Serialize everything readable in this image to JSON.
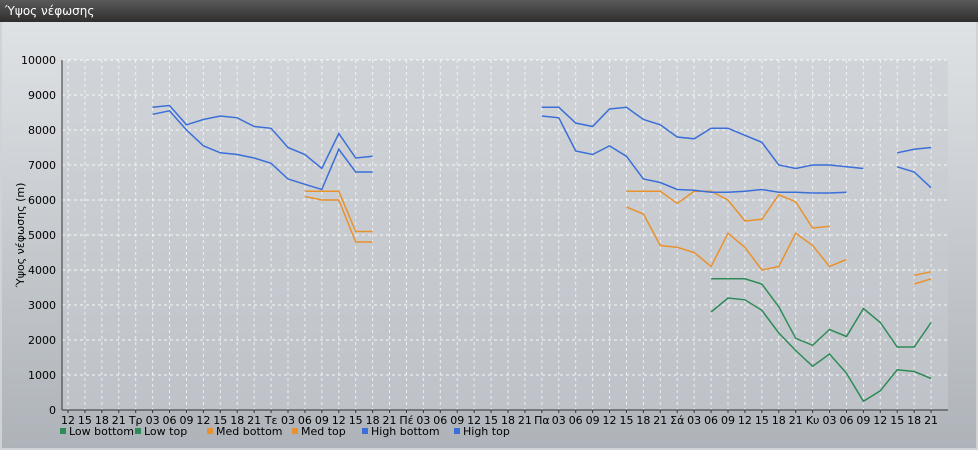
{
  "window": {
    "title": "Ύψος νέφωσης"
  },
  "chart_data": {
    "type": "line",
    "ylabel": "Ύψος νέφωσης (m)",
    "ylim": [
      0,
      10000
    ],
    "yticks": [
      0,
      1000,
      2000,
      3000,
      4000,
      5000,
      6000,
      7000,
      8000,
      9000,
      10000
    ],
    "grid": true,
    "legend_position": "bottom-left",
    "categories": [
      "12",
      "15",
      "18",
      "21",
      "Τρ",
      "03",
      "06",
      "09",
      "12",
      "15",
      "18",
      "21",
      "Τε",
      "03",
      "06",
      "09",
      "12",
      "15",
      "18",
      "21",
      "Πέ",
      "03",
      "06",
      "09",
      "12",
      "15",
      "18",
      "21",
      "Πα",
      "03",
      "06",
      "09",
      "12",
      "15",
      "18",
      "21",
      "Σά",
      "03",
      "06",
      "09",
      "12",
      "15",
      "18",
      "21",
      "Κυ",
      "03",
      "06",
      "09",
      "12",
      "15",
      "18",
      "21"
    ],
    "series": [
      {
        "name": "Low bottom",
        "color": "#2e8b57",
        "values": [
          null,
          null,
          null,
          null,
          null,
          null,
          null,
          null,
          null,
          null,
          null,
          null,
          null,
          null,
          null,
          null,
          null,
          null,
          null,
          null,
          null,
          null,
          null,
          null,
          null,
          null,
          null,
          null,
          null,
          null,
          null,
          null,
          null,
          null,
          null,
          null,
          null,
          null,
          2800,
          3200,
          3150,
          2850,
          2200,
          1700,
          1250,
          1600,
          1050,
          250,
          550,
          1150,
          1100,
          900
        ]
      },
      {
        "name": "Low top",
        "color": "#2e8b57",
        "values": [
          null,
          null,
          null,
          null,
          null,
          null,
          null,
          null,
          null,
          null,
          null,
          null,
          null,
          null,
          null,
          null,
          null,
          null,
          null,
          null,
          null,
          null,
          null,
          null,
          null,
          null,
          null,
          null,
          null,
          null,
          null,
          null,
          null,
          null,
          null,
          null,
          null,
          null,
          3750,
          3750,
          3750,
          3600,
          2950,
          2050,
          1850,
          2300,
          2100,
          2900,
          2500,
          1800,
          1800,
          2500
        ]
      },
      {
        "name": "Med bottom",
        "color": "#e8922e",
        "values": [
          null,
          null,
          null,
          null,
          null,
          null,
          null,
          null,
          null,
          null,
          null,
          null,
          null,
          null,
          6100,
          6000,
          6000,
          4800,
          4800,
          null,
          null,
          null,
          null,
          null,
          null,
          null,
          null,
          null,
          null,
          null,
          null,
          null,
          null,
          5800,
          5600,
          4700,
          4650,
          4500,
          4100,
          5050,
          4650,
          4000,
          4100,
          5050,
          4700,
          4100,
          4300,
          null,
          null,
          null,
          3600,
          3750
        ]
      },
      {
        "name": "Med top",
        "color": "#e8922e",
        "values": [
          null,
          null,
          null,
          null,
          null,
          null,
          null,
          null,
          null,
          null,
          null,
          null,
          null,
          null,
          6250,
          6250,
          6250,
          5100,
          5100,
          null,
          null,
          null,
          null,
          null,
          null,
          null,
          null,
          null,
          null,
          null,
          null,
          null,
          null,
          6250,
          6250,
          6250,
          5900,
          6250,
          6250,
          6000,
          5400,
          5450,
          6150,
          5950,
          5200,
          5250,
          null,
          null,
          null,
          null,
          3850,
          3950
        ]
      },
      {
        "name": "High bottom",
        "color": "#3a6fd8",
        "values": [
          null,
          null,
          null,
          null,
          null,
          8450,
          8550,
          8000,
          7550,
          7350,
          7300,
          7200,
          7050,
          6600,
          6450,
          6300,
          7450,
          6800,
          6800,
          null,
          null,
          null,
          null,
          null,
          null,
          null,
          null,
          null,
          8400,
          8350,
          7400,
          7300,
          7550,
          7250,
          6600,
          6500,
          6300,
          6280,
          6220,
          6220,
          6250,
          6300,
          6220,
          6220,
          6200,
          6200,
          6220,
          null,
          null,
          6950,
          6800,
          6350
        ]
      },
      {
        "name": "High top",
        "color": "#3a6fd8",
        "values": [
          null,
          null,
          null,
          null,
          null,
          8650,
          8700,
          8150,
          8300,
          8400,
          8350,
          8100,
          8050,
          7500,
          7300,
          6900,
          7900,
          7200,
          7250,
          null,
          null,
          null,
          null,
          null,
          null,
          null,
          null,
          null,
          8650,
          8650,
          8200,
          8100,
          8600,
          8650,
          8300,
          8150,
          7800,
          7750,
          8050,
          8050,
          7850,
          7650,
          7000,
          6900,
          7000,
          7000,
          6950,
          6900,
          null,
          7350,
          7450,
          7500
        ]
      }
    ]
  }
}
